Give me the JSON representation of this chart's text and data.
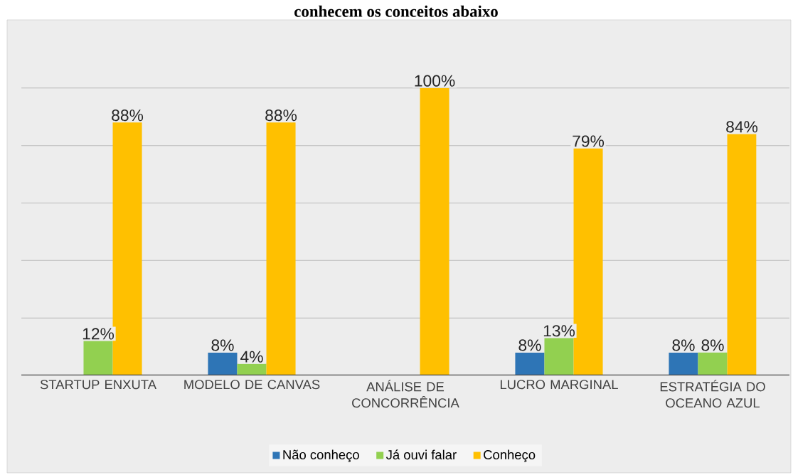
{
  "chart_data": {
    "type": "bar",
    "title": "conhecem os conceitos abaixo",
    "categories": [
      "STARTUP ENXUTA",
      "MODELO DE CANVAS",
      "ANÁLISE DE CONCORRÊNCIA",
      "LUCRO MARGINAL",
      "ESTRATÉGIA DO OCEANO AZUL"
    ],
    "series": [
      {
        "name": "Não conheço",
        "color": "#2e75b6",
        "values": [
          null,
          8,
          null,
          8,
          8
        ],
        "value_labels": [
          null,
          "8%",
          null,
          "8%",
          "8%"
        ]
      },
      {
        "name": "Já ouvi falar",
        "color": "#92d050",
        "values": [
          12,
          4,
          null,
          13,
          8
        ],
        "value_labels": [
          "12%",
          "4%",
          null,
          "13%",
          "8%"
        ]
      },
      {
        "name": "Conheço",
        "color": "#ffc000",
        "values": [
          88,
          88,
          100,
          79,
          84
        ],
        "value_labels": [
          "88%",
          "88%",
          "100%",
          "79%",
          "84%"
        ]
      }
    ],
    "yticks": [
      {
        "value": 20,
        "label": null
      },
      {
        "value": 40,
        "label": null
      },
      {
        "value": 60,
        "label": null
      },
      {
        "value": 80,
        "label": null
      },
      {
        "value": 100,
        "label": null
      }
    ],
    "tick_labels": "x",
    "grid": "y",
    "legend": "bottom"
  }
}
